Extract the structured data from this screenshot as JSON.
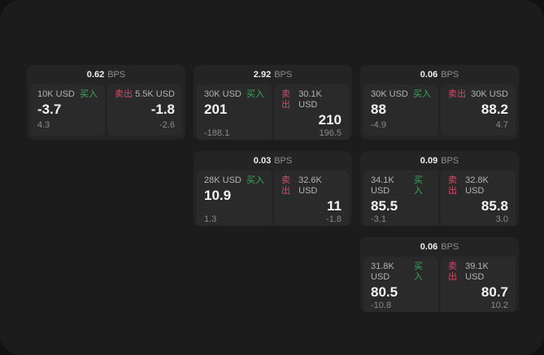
{
  "colors": {
    "buy_green": "#3aa85c",
    "sell_red": "#d14b67",
    "surface": "#1c1c1c",
    "card": "#242424",
    "panel": "#2a2a2a"
  },
  "cards": [
    {
      "bps_value": "0.62",
      "bps_unit": "BPS",
      "buy": {
        "amount": "10K USD",
        "side_label": "买入",
        "price": "-3.7",
        "delta": "4.3"
      },
      "sell": {
        "side_label": "卖出",
        "amount": "5.5K USD",
        "price": "-1.8",
        "delta": "-2.6"
      }
    },
    {
      "bps_value": "2.92",
      "bps_unit": "BPS",
      "buy": {
        "amount": "30K USD",
        "side_label": "买入",
        "price": "201",
        "delta": "-188.1"
      },
      "sell": {
        "side_label": "卖出",
        "amount": "30.1K USD",
        "price": "210",
        "delta": "196.5"
      }
    },
    {
      "bps_value": "0.06",
      "bps_unit": "BPS",
      "buy": {
        "amount": "30K USD",
        "side_label": "买入",
        "price": "88",
        "delta": "-4.9"
      },
      "sell": {
        "side_label": "卖出",
        "amount": "30K USD",
        "price": "88.2",
        "delta": "4.7"
      }
    },
    {
      "bps_value": "0.03",
      "bps_unit": "BPS",
      "buy": {
        "amount": "28K USD",
        "side_label": "买入",
        "price": "10.9",
        "delta": "1.3"
      },
      "sell": {
        "side_label": "卖出",
        "amount": "32.6K USD",
        "price": "11",
        "delta": "-1.8"
      }
    },
    {
      "bps_value": "0.09",
      "bps_unit": "BPS",
      "buy": {
        "amount": "34.1K USD",
        "side_label": "买入",
        "price": "85.5",
        "delta": "-3.1"
      },
      "sell": {
        "side_label": "卖出",
        "amount": "32.8K USD",
        "price": "85.8",
        "delta": "3.0"
      }
    },
    {
      "bps_value": "0.06",
      "bps_unit": "BPS",
      "buy": {
        "amount": "31.8K USD",
        "side_label": "买入",
        "price": "80.5",
        "delta": "-10.8"
      },
      "sell": {
        "side_label": "卖出",
        "amount": "39.1K USD",
        "price": "80.7",
        "delta": "10.2"
      }
    }
  ]
}
